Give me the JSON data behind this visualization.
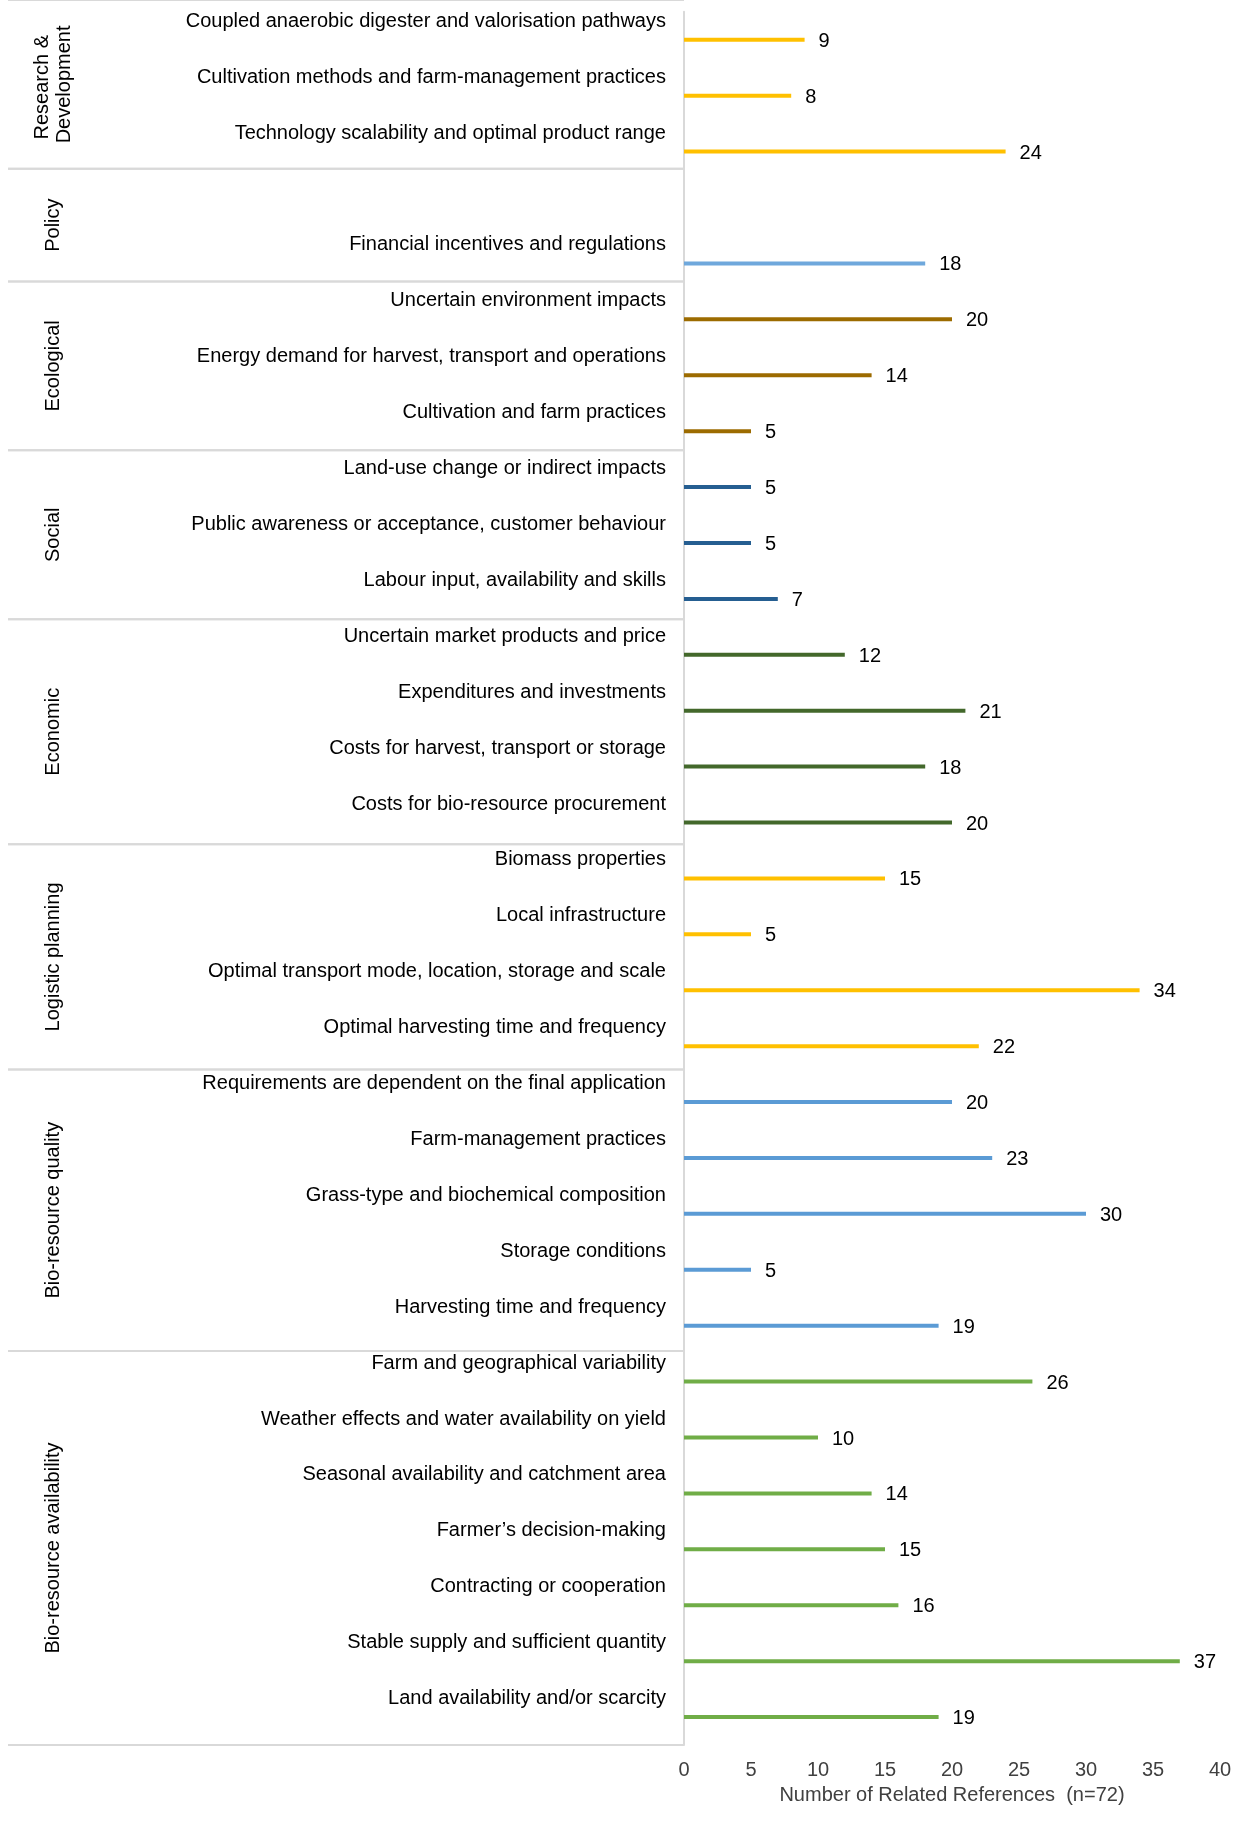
{
  "chart_data": {
    "type": "bar",
    "orientation": "horizontal",
    "xlabel": "Number of Related References  (n=72)",
    "categories": [
      "Coupled anaerobic digester and valorisation pathways",
      "Cultivation methods and farm-management practices",
      "Technology scalability and optimal product range",
      null,
      "Financial incentives and regulations",
      "Uncertain environment impacts",
      "Energy demand for harvest, transport and operations",
      "Cultivation and farm practices",
      "Land-use change or indirect impacts",
      "Public awareness or acceptance, customer behaviour",
      "Labour input, availability and skills",
      "Uncertain market products and price",
      "Expenditures and investments",
      "Costs for harvest, transport or storage",
      "Costs for bio-resource procurement",
      "Biomass properties",
      "Local infrastructure",
      "Optimal transport mode, location, storage and scale",
      "Optimal harvesting time and frequency",
      "Requirements are dependent on the final application",
      "Farm-management practices",
      "Grass-type and biochemical composition",
      "Storage conditions",
      "Harvesting time and frequency",
      "Farm and geographical variability",
      "Weather effects and water availability on yield",
      "Seasonal availability and catchment area",
      "Farmer’s decision-making",
      "Contracting or cooperation",
      "Stable supply and sufficient quantity",
      "Land availability and/or scarcity"
    ],
    "values": [
      9,
      8,
      24,
      null,
      18,
      20,
      14,
      5,
      5,
      5,
      7,
      12,
      21,
      18,
      20,
      15,
      5,
      34,
      22,
      20,
      23,
      30,
      5,
      19,
      26,
      10,
      14,
      15,
      16,
      37,
      19
    ],
    "colors": [
      "#ffc000",
      "#ffc000",
      "#ffc000",
      "#6fa8dc",
      "#6fa8dc",
      "#9c6b00",
      "#9c6b00",
      "#9c6b00",
      "#255e91",
      "#255e91",
      "#255e91",
      "#43682b",
      "#43682b",
      "#43682b",
      "#43682b",
      "#ffc000",
      "#ffc000",
      "#ffc000",
      "#ffc000",
      "#5b9bd5",
      "#5b9bd5",
      "#5b9bd5",
      "#5b9bd5",
      "#5b9bd5",
      "#70ad47",
      "#70ad47",
      "#70ad47",
      "#70ad47",
      "#70ad47",
      "#70ad47",
      "#70ad47"
    ],
    "annotations": [
      "Research & Development",
      "Policy",
      "Ecological",
      "Social",
      "Economic",
      "Logistic planning",
      "Bio-resource quality",
      "Bio-resource availability"
    ],
    "xlim": [
      0,
      40
    ],
    "xticks": [
      0,
      5,
      10,
      15,
      20,
      25,
      30,
      35,
      40
    ],
    "data_labels": true,
    "grid": false
  }
}
